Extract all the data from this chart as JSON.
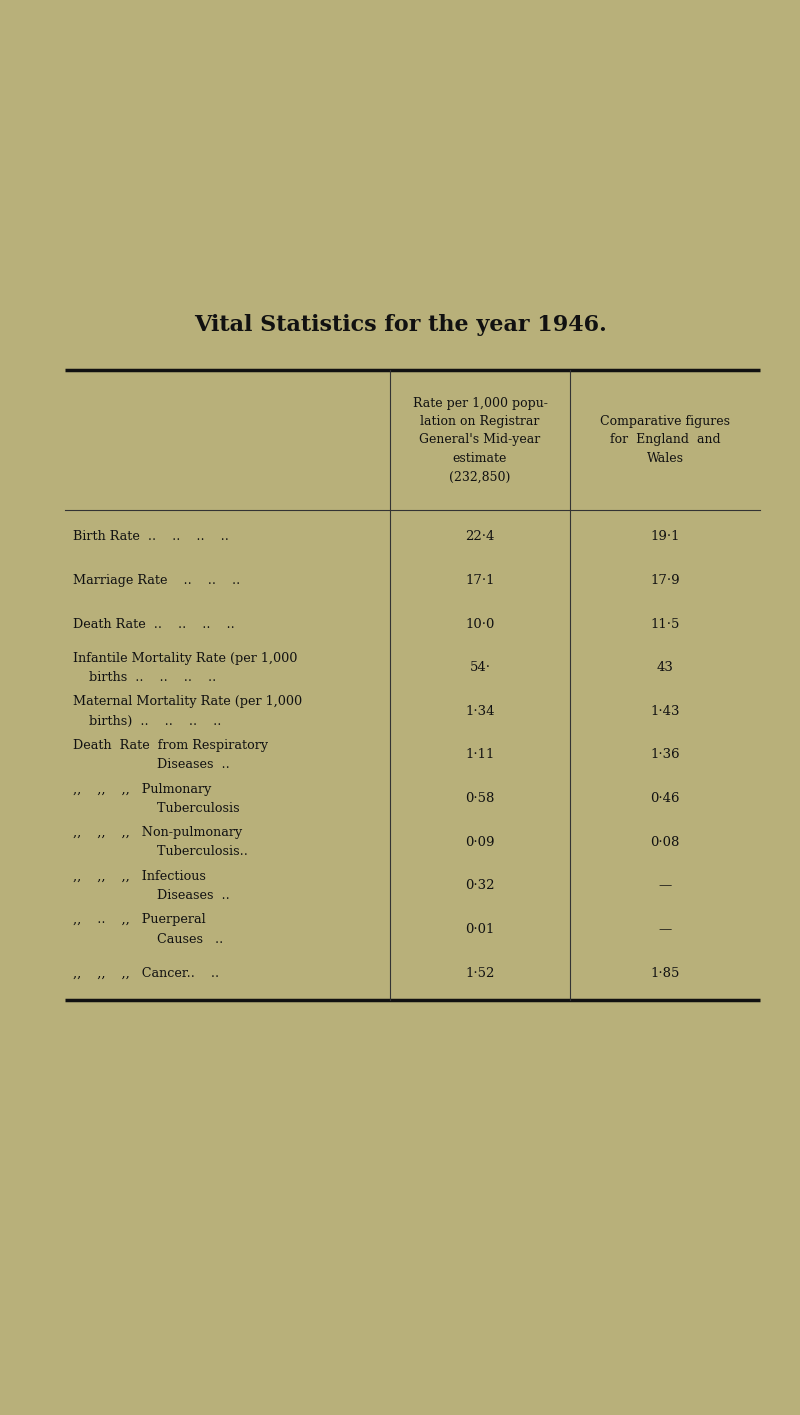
{
  "title": "Vital Statistics for the year 1946.",
  "bg_color": "#b8b07a",
  "text_color": "#111111",
  "col2_header": "Rate per 1,000 popu-\nlation on Registrar\nGeneral's Mid-year\nestimate\n(232,850)",
  "col3_header": "Comparative figures\nfor  England  and\nWales",
  "rows": [
    {
      "label_line1": "Birth Rate  ..    ..    ..    ..",
      "label_line2": null,
      "val1": "22·4",
      "val2": "19·1"
    },
    {
      "label_line1": "Marriage Rate    ..    ..    ..",
      "label_line2": null,
      "val1": "17·1",
      "val2": "17·9"
    },
    {
      "label_line1": "Death Rate  ..    ..    ..    ..",
      "label_line2": null,
      "val1": "10·0",
      "val2": "11·5"
    },
    {
      "label_line1": "Infantile Mortality Rate (per 1,000",
      "label_line2": "    births  ..    ..    ..    ..",
      "val1": "54·",
      "val2": "43"
    },
    {
      "label_line1": "Maternal Mortality Rate (per 1,000",
      "label_line2": "    births)  ..    ..    ..    ..",
      "val1": "1·34",
      "val2": "1·43"
    },
    {
      "label_line1": "Death  Rate  from Respiratory",
      "label_line2": "                     Diseases  ..",
      "val1": "1·11",
      "val2": "1·36"
    },
    {
      "label_line1": ",,    ,,    ,,   Pulmonary",
      "label_line2": "                     Tuberculosis",
      "val1": "0·58",
      "val2": "0·46"
    },
    {
      "label_line1": ",,    ,,    ,,   Non-pulmonary",
      "label_line2": "                     Tuberculosis..",
      "val1": "0·09",
      "val2": "0·08"
    },
    {
      "label_line1": ",,    ,,    ,,   Infectious",
      "label_line2": "                     Diseases  ..",
      "val1": "0·32",
      "val2": "—"
    },
    {
      "label_line1": ",,    ..    ,,   Puerperal",
      "label_line2": "                     Causes   ..",
      "val1": "0·01",
      "val2": "—"
    },
    {
      "label_line1": ",,    ,,    ,,   Cancer..    ..",
      "label_line2": null,
      "val1": "1·52",
      "val2": "1·85"
    }
  ]
}
